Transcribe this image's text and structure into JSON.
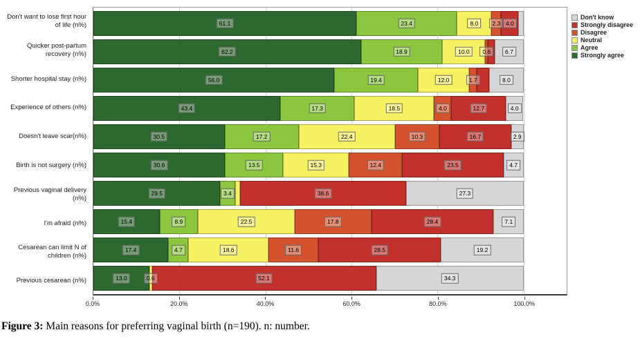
{
  "figure": {
    "caption_label": "Figure 3:",
    "caption_text": " Main reasons for preferring vaginal birth (n=190). n: number."
  },
  "chart_data": {
    "type": "bar",
    "orientation": "horizontal",
    "stacked": true,
    "title": "",
    "xlabel": "",
    "ylabel": "",
    "grid": "vertical",
    "x_axis": {
      "ticks": [
        "0.0%",
        "20.0%",
        "40.0%",
        "60.0%",
        "80.0%",
        "100.0%"
      ],
      "tick_values": [
        0,
        20,
        40,
        60,
        80,
        100
      ],
      "max_extent": 110
    },
    "legend": {
      "position": "top-right",
      "items": [
        {
          "key": "dont_know",
          "label": "Don't know"
        },
        {
          "key": "strongly_disagree",
          "label": "Strongly disagree"
        },
        {
          "key": "disagree",
          "label": "Disagree"
        },
        {
          "key": "neutral",
          "label": "Neutral"
        },
        {
          "key": "agree",
          "label": "Agree"
        },
        {
          "key": "strongly_agree",
          "label": "Strongly agree"
        }
      ]
    },
    "colors": {
      "strongly_agree": "#2d682f",
      "agree": "#8cc63f",
      "neutral": "#f6f163",
      "disagree": "#d5522e",
      "strongly_disagree": "#c2312b",
      "dont_know": "#d6d6d6"
    },
    "stack_order": [
      "strongly_agree",
      "agree",
      "neutral",
      "disagree",
      "strongly_disagree",
      "dont_know"
    ],
    "rows": [
      {
        "category": "Don't want to lose first hour of life (n%)",
        "segments": [
          {
            "key": "strongly_agree",
            "value": 61.1,
            "label": "61.1"
          },
          {
            "key": "agree",
            "value": 23.4,
            "label": "23.4"
          },
          {
            "key": "neutral",
            "value": 8.0,
            "label": "8.0"
          },
          {
            "key": "disagree",
            "value": 2.3,
            "label": "2.3"
          },
          {
            "key": "strongly_disagree",
            "value": 4.0,
            "label": "4.0"
          },
          {
            "key": "dont_know",
            "value": 1.2,
            "label": ""
          }
        ]
      },
      {
        "category": "Quicker post-partum recovery (n%)",
        "segments": [
          {
            "key": "strongly_agree",
            "value": 62.2,
            "label": "62.2"
          },
          {
            "key": "agree",
            "value": 18.9,
            "label": "18.9"
          },
          {
            "key": "neutral",
            "value": 10.0,
            "label": "10.0"
          },
          {
            "key": "disagree",
            "value": 0.6,
            "label": "0.6"
          },
          {
            "key": "strongly_disagree",
            "value": 1.6,
            "label": ""
          },
          {
            "key": "dont_know",
            "value": 6.7,
            "label": "6.7"
          }
        ]
      },
      {
        "category": "Shorter hospital stay (n%)",
        "segments": [
          {
            "key": "strongly_agree",
            "value": 56.0,
            "label": "56.0"
          },
          {
            "key": "agree",
            "value": 19.4,
            "label": "19.4"
          },
          {
            "key": "neutral",
            "value": 12.0,
            "label": "12.0"
          },
          {
            "key": "disagree",
            "value": 1.7,
            "label": "1.7"
          },
          {
            "key": "strongly_disagree",
            "value": 2.9,
            "label": ""
          },
          {
            "key": "dont_know",
            "value": 8.0,
            "label": "8.0"
          }
        ]
      },
      {
        "category": "Experience of others (n%)",
        "segments": [
          {
            "key": "strongly_agree",
            "value": 43.4,
            "label": "43.4"
          },
          {
            "key": "agree",
            "value": 17.3,
            "label": "17.3"
          },
          {
            "key": "neutral",
            "value": 18.5,
            "label": "18.5"
          },
          {
            "key": "disagree",
            "value": 4.0,
            "label": "4.0"
          },
          {
            "key": "strongly_disagree",
            "value": 12.7,
            "label": "12.7"
          },
          {
            "key": "dont_know",
            "value": 4.0,
            "label": "4.0"
          }
        ]
      },
      {
        "category": "Doesn't leave scar(n%)",
        "segments": [
          {
            "key": "strongly_agree",
            "value": 30.5,
            "label": "30.5"
          },
          {
            "key": "agree",
            "value": 17.2,
            "label": "17.2"
          },
          {
            "key": "neutral",
            "value": 22.4,
            "label": "22.4"
          },
          {
            "key": "disagree",
            "value": 10.3,
            "label": "10.3"
          },
          {
            "key": "strongly_disagree",
            "value": 16.7,
            "label": "16.7"
          },
          {
            "key": "dont_know",
            "value": 2.9,
            "label": "2.9"
          }
        ]
      },
      {
        "category": "Birth is not surgery (n%)",
        "segments": [
          {
            "key": "strongly_agree",
            "value": 30.6,
            "label": "30.6"
          },
          {
            "key": "agree",
            "value": 13.5,
            "label": "13.5"
          },
          {
            "key": "neutral",
            "value": 15.3,
            "label": "15.3"
          },
          {
            "key": "disagree",
            "value": 12.4,
            "label": "12.4"
          },
          {
            "key": "strongly_disagree",
            "value": 23.5,
            "label": "23.5"
          },
          {
            "key": "dont_know",
            "value": 4.7,
            "label": "4.7"
          }
        ]
      },
      {
        "category": "Previous vaginal delivery (n%)",
        "segments": [
          {
            "key": "strongly_agree",
            "value": 29.5,
            "label": "29.5"
          },
          {
            "key": "agree",
            "value": 3.4,
            "label": "3.4"
          },
          {
            "key": "neutral",
            "value": 1.2,
            "label": ""
          },
          {
            "key": "strongly_disagree",
            "value": 38.6,
            "label": "38.6"
          },
          {
            "key": "dont_know",
            "value": 27.3,
            "label": "27.3"
          }
        ]
      },
      {
        "category": "I'm afraid (n%)",
        "segments": [
          {
            "key": "strongly_agree",
            "value": 15.4,
            "label": "15.4"
          },
          {
            "key": "agree",
            "value": 8.9,
            "label": "8.9"
          },
          {
            "key": "neutral",
            "value": 22.5,
            "label": "22.5"
          },
          {
            "key": "disagree",
            "value": 17.8,
            "label": "17.8"
          },
          {
            "key": "strongly_disagree",
            "value": 28.4,
            "label": "28.4"
          },
          {
            "key": "dont_know",
            "value": 7.1,
            "label": "7.1"
          }
        ]
      },
      {
        "category": "Cesarean can limit N of children (n%)",
        "segments": [
          {
            "key": "strongly_agree",
            "value": 17.4,
            "label": "17.4"
          },
          {
            "key": "agree",
            "value": 4.7,
            "label": "4.7"
          },
          {
            "key": "neutral",
            "value": 18.6,
            "label": "18.6"
          },
          {
            "key": "disagree",
            "value": 11.6,
            "label": "11.6"
          },
          {
            "key": "strongly_disagree",
            "value": 28.5,
            "label": "28.5"
          },
          {
            "key": "dont_know",
            "value": 19.2,
            "label": "19.2"
          }
        ]
      },
      {
        "category": "Previous cesarean (n%)",
        "segments": [
          {
            "key": "strongly_agree",
            "value": 13.0,
            "label": "13.0"
          },
          {
            "key": "neutral",
            "value": 0.6,
            "label": "0.6"
          },
          {
            "key": "strongly_disagree",
            "value": 52.1,
            "label": "52.1"
          },
          {
            "key": "dont_know",
            "value": 34.3,
            "label": "34.3"
          }
        ]
      }
    ]
  }
}
